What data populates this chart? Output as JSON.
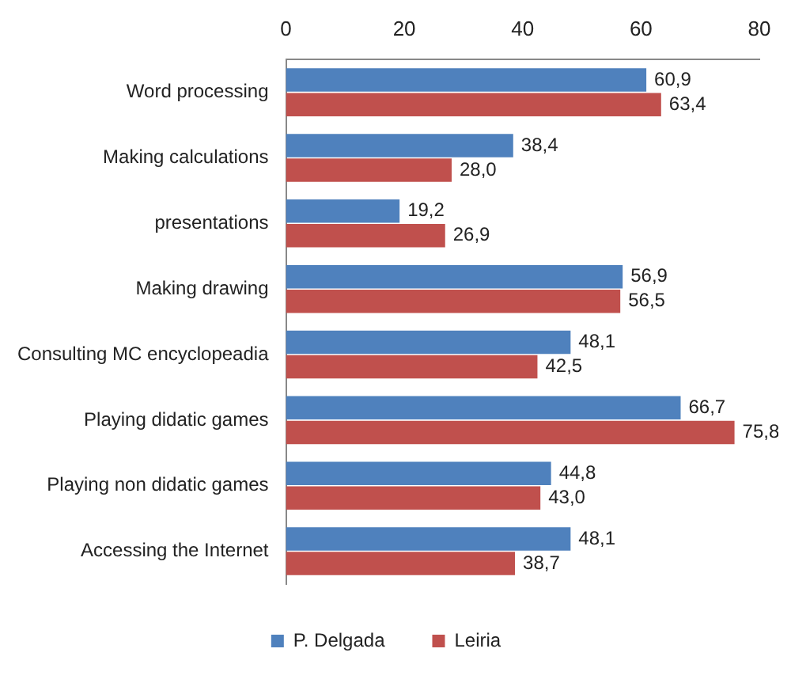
{
  "chart_data": {
    "type": "bar",
    "orientation": "horizontal",
    "categories": [
      "Word processing",
      "Making calculations",
      "presentations",
      "Making drawing",
      "Consulting MC encyclopeadia",
      "Playing didatic games",
      "Playing non didatic games",
      "Accessing the Internet"
    ],
    "series": [
      {
        "name": "P. Delgada",
        "color": "#4f81bd",
        "values": [
          60.9,
          38.4,
          19.2,
          56.9,
          48.1,
          66.7,
          44.8,
          48.1
        ],
        "value_labels": [
          "60,9",
          "38,4",
          "19,2",
          "56,9",
          "48,1",
          "66,7",
          "44,8",
          "48,1"
        ]
      },
      {
        "name": "Leiria",
        "color": "#c0504d",
        "values": [
          63.4,
          28.0,
          26.9,
          56.5,
          42.5,
          75.8,
          43.0,
          38.7
        ],
        "value_labels": [
          "63,4",
          "28,0",
          "26,9",
          "56,5",
          "42,5",
          "75,8",
          "43,0",
          "38,7"
        ]
      }
    ],
    "xlim": [
      0,
      80
    ],
    "xticks": [
      0,
      20,
      40,
      60,
      80
    ],
    "grid": false,
    "legend": "bottom"
  }
}
